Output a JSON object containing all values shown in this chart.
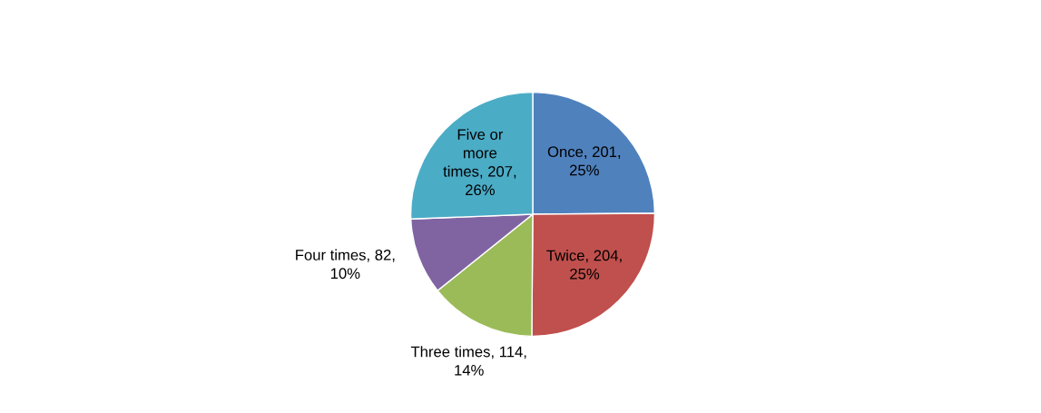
{
  "chart_data": {
    "type": "pie",
    "categories": [
      "Once",
      "Twice",
      "Three times",
      "Four times",
      "Five or more times"
    ],
    "values": [
      201,
      204,
      114,
      82,
      207
    ],
    "value_labels": [
      "201, 25%",
      "204, 25%",
      "114, 14%",
      "82, 10%",
      "207, 26%"
    ],
    "colors": [
      "#4f81bd",
      "#c0504d",
      "#9bbb59",
      "#8064a2",
      "#4bacc6"
    ],
    "legend": false
  }
}
